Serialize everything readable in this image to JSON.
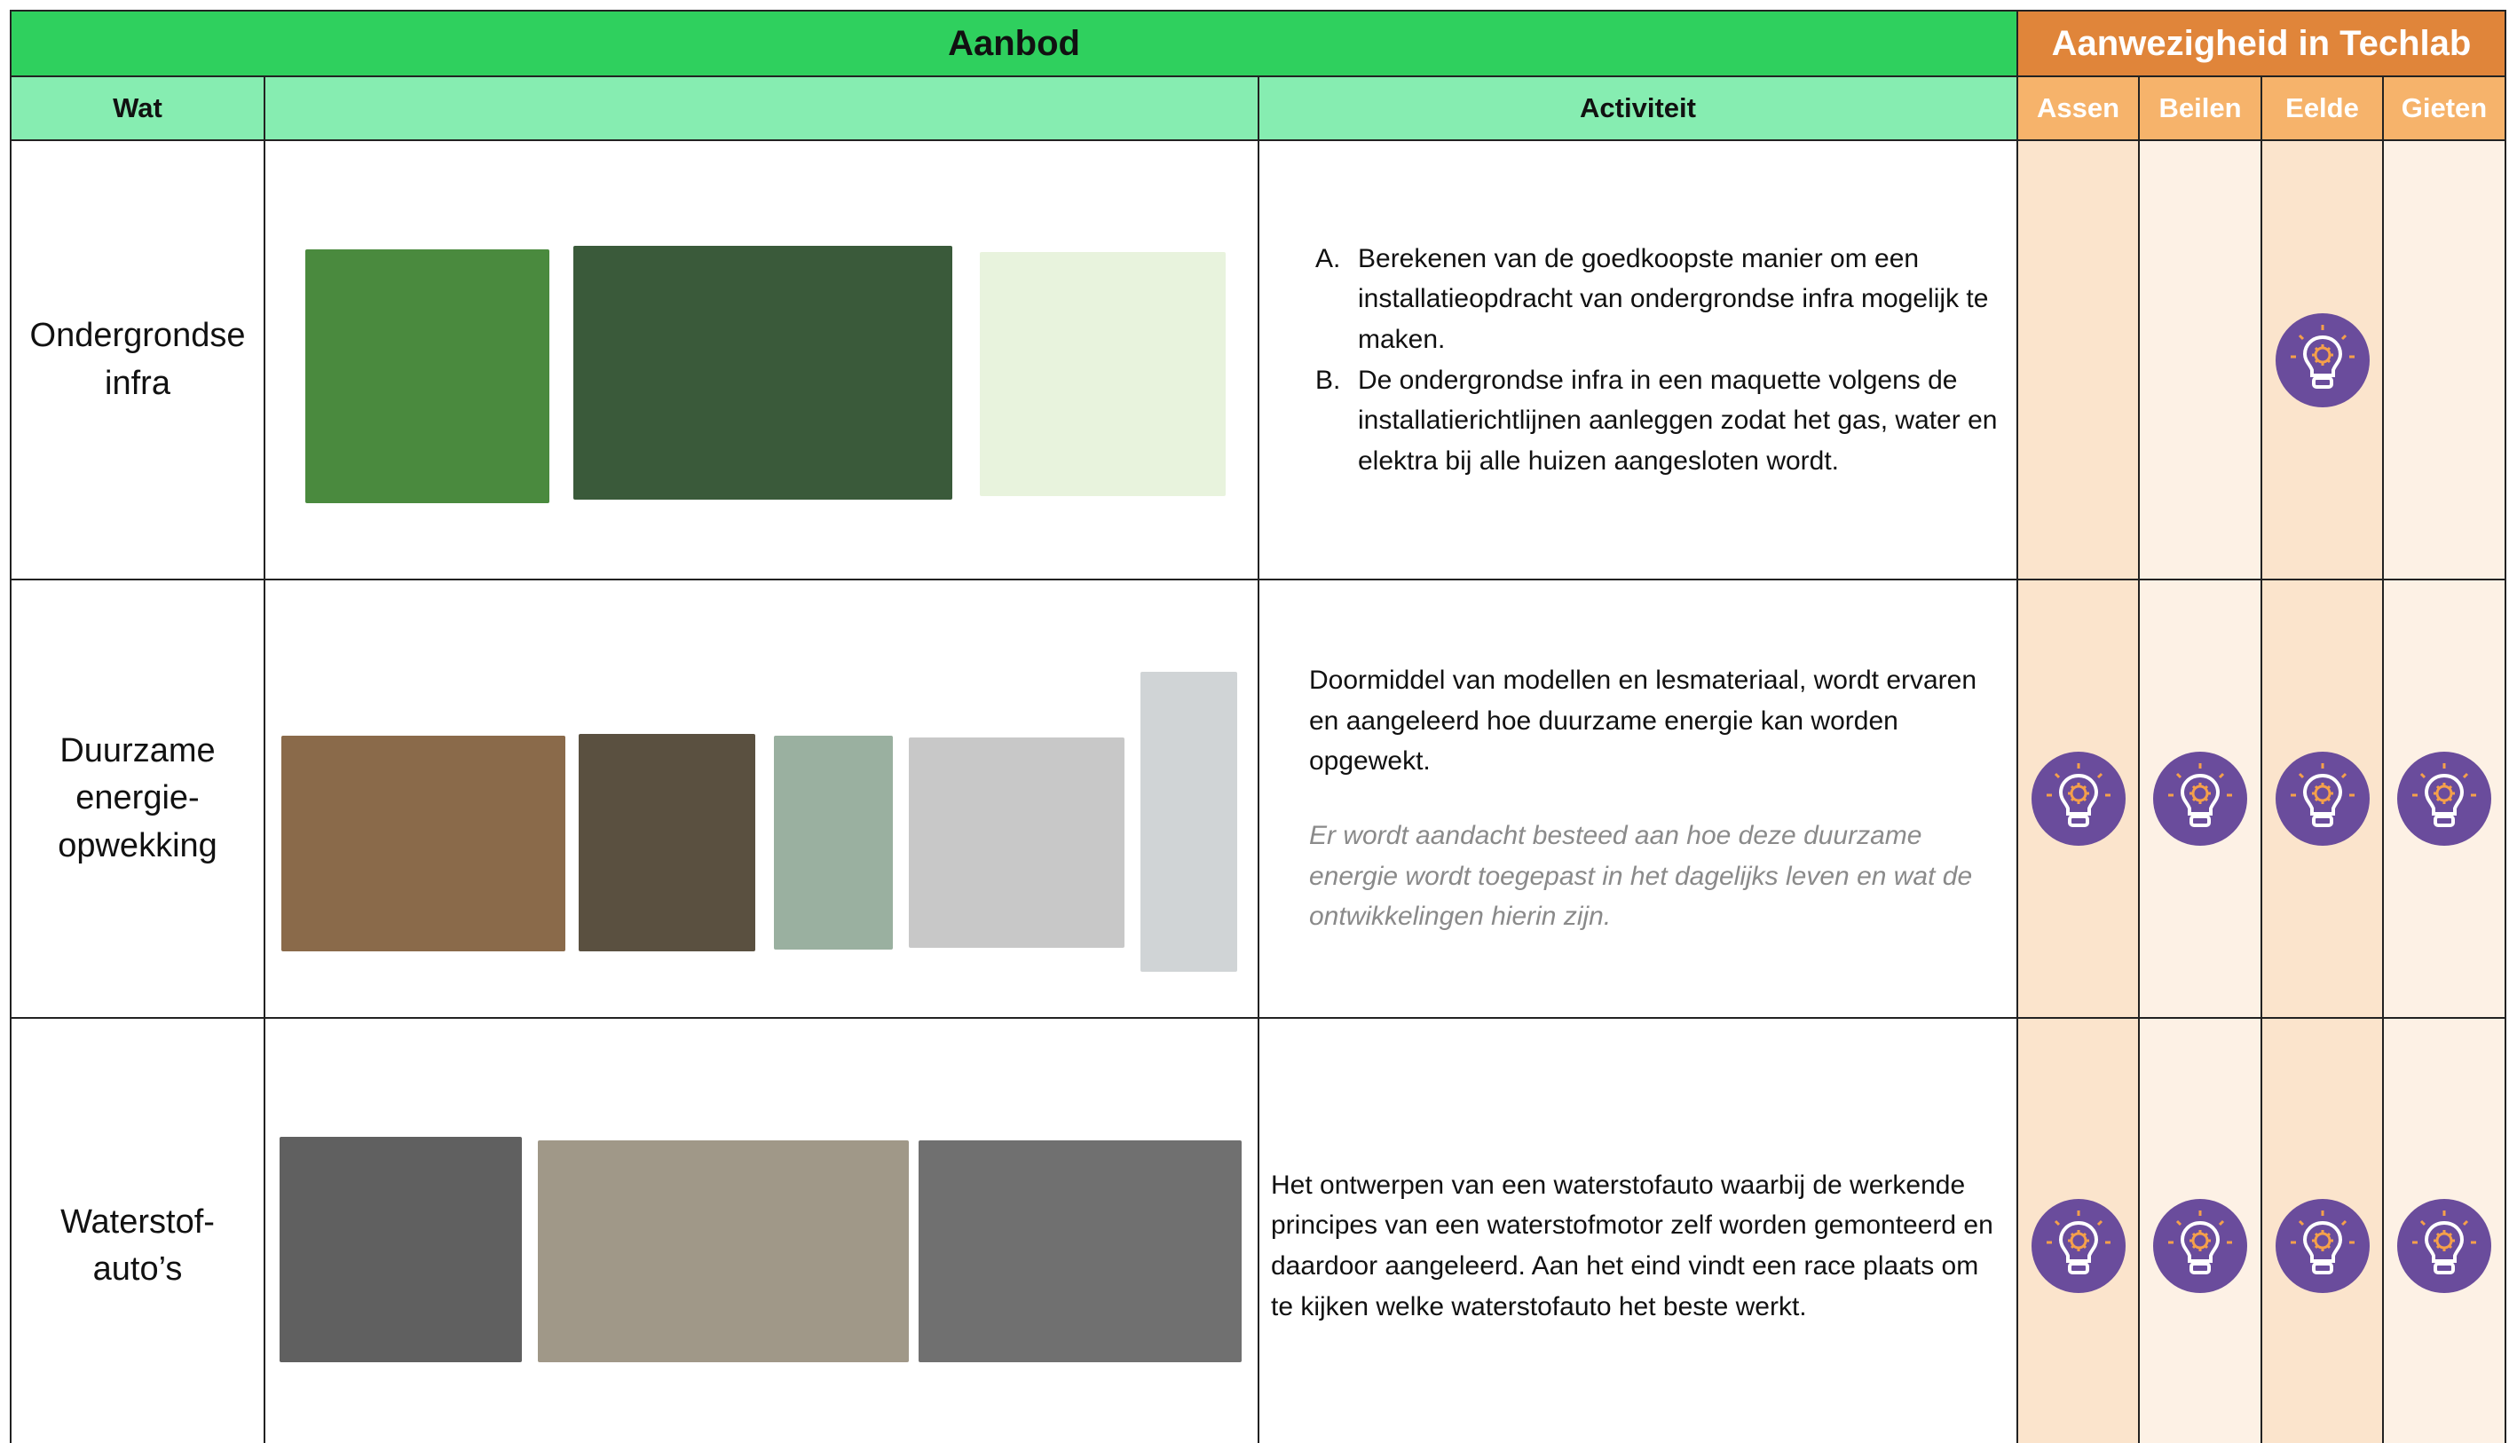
{
  "header": {
    "aanbod": "Aanbod",
    "aanwezigheid": "Aanwezigheid in Techlab"
  },
  "columns": {
    "wat": "Wat",
    "activiteit": "Activiteit",
    "locations": [
      "Assen",
      "Beilen",
      "Eelde",
      "Gieten"
    ]
  },
  "rows": [
    {
      "name": "Ondergrondse infra",
      "activity": {
        "items": [
          {
            "marker": "A.",
            "text": "Berekenen van de goedkoopste manier om een installatieopdracht van ondergrondse infra mogelijk te maken."
          },
          {
            "marker": "B.",
            "text": "De ondergrondse infra in een maquette volgens de installatierichtlijnen aanleggen zodat het gas, water en elektra bij alle huizen aangesloten wordt."
          }
        ]
      },
      "present": [
        false,
        false,
        true,
        false
      ]
    },
    {
      "name": "Duurzame energie-opwekking",
      "activity": {
        "paragraphs": [
          "Doormiddel van modellen en lesmateriaal, wordt ervaren en aangeleerd hoe duurzame energie kan worden opgewekt."
        ],
        "note": "Er wordt aandacht besteed aan hoe deze duurzame energie wordt toegepast in het dagelijks leven en wat de ontwikkelingen hierin zijn."
      },
      "present": [
        true,
        true,
        true,
        true
      ]
    },
    {
      "name": "Waterstof-auto’s",
      "activity": {
        "paragraphs": [
          "Het ontwerpen van een waterstofauto waarbij de werkende principes van een waterstofmotor zelf worden gemonteerd en daardoor aangeleerd. Aan het eind vindt een race plaats om te kijken welke waterstofauto het beste werkt."
        ]
      },
      "present": [
        true,
        true,
        true,
        true
      ]
    }
  ]
}
